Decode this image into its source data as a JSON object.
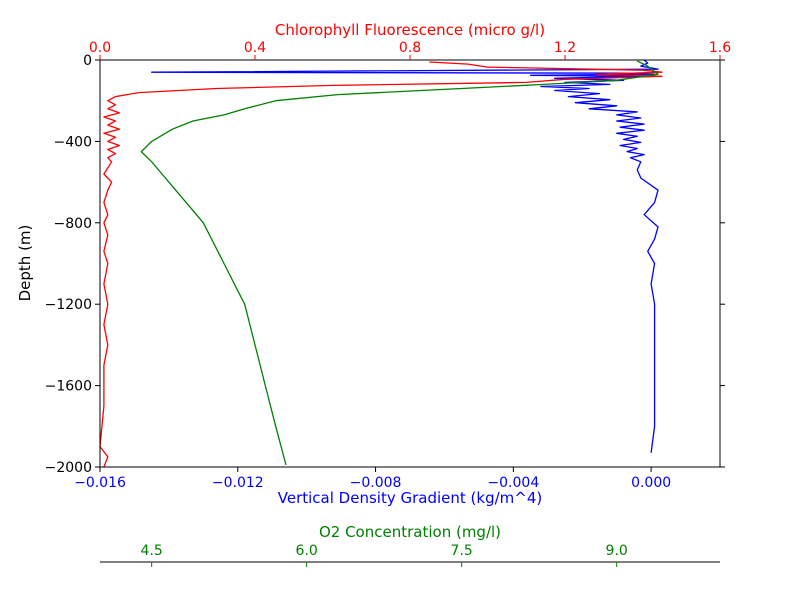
{
  "chart_data": {
    "type": "line",
    "y_axis": {
      "label": "Depth (m)",
      "range": [
        -2000,
        0
      ],
      "ticks": [
        0,
        -400,
        -800,
        -1200,
        -1600,
        -2000
      ],
      "tick_labels": [
        "0",
        "−400",
        "−800",
        "−1200",
        "−1600",
        "−2000"
      ],
      "color": "#000000"
    },
    "x_axes": [
      {
        "id": "density",
        "position": "bottom",
        "label": "Vertical Density Gradient (kg/m^4)",
        "range": [
          -0.016,
          0.002
        ],
        "ticks": [
          -0.016,
          -0.012,
          -0.008,
          -0.004,
          0.0
        ],
        "tick_labels": [
          "−0.016",
          "−0.012",
          "−0.008",
          "−0.004",
          "0.000"
        ],
        "color": "#0000ff"
      },
      {
        "id": "chlorophyll",
        "position": "top",
        "label": "Chlorophyll Fluorescence (micro g/l)",
        "range": [
          0,
          1.6
        ],
        "ticks": [
          0,
          0.4,
          0.8,
          1.2,
          1.6
        ],
        "tick_labels": [
          "0.0",
          "0.4",
          "0.8",
          "1.2",
          "1.6"
        ],
        "color": "#ff0000"
      },
      {
        "id": "oxygen",
        "position": "detached-bottom",
        "label": "O2 Concentration (mg/l)",
        "range": [
          4.0,
          10.0
        ],
        "ticks": [
          4.5,
          6.0,
          7.5,
          9.0
        ],
        "tick_labels": [
          "4.5",
          "6.0",
          "7.5",
          "9.0"
        ],
        "color": "#008000"
      }
    ],
    "series": [
      {
        "axis": "density",
        "color": "#0000ff",
        "points": [
          [
            -0.0002,
            0
          ],
          [
            -0.0001,
            -15
          ],
          [
            -0.0003,
            -30
          ],
          [
            0.0002,
            -45
          ],
          [
            -0.0145,
            -60
          ],
          [
            -0.0006,
            -65
          ],
          [
            0.0001,
            -70
          ],
          [
            -0.0035,
            -75
          ],
          [
            -0.0003,
            -80
          ],
          [
            -0.0028,
            -90
          ],
          [
            -0.0008,
            -100
          ],
          [
            -0.0025,
            -110
          ],
          [
            -0.0012,
            -120
          ],
          [
            -0.0032,
            -130
          ],
          [
            -0.0018,
            -140
          ],
          [
            -0.0028,
            -150
          ],
          [
            -0.0015,
            -165
          ],
          [
            -0.0024,
            -180
          ],
          [
            -0.0012,
            -195
          ],
          [
            -0.0022,
            -210
          ],
          [
            -0.001,
            -225
          ],
          [
            -0.0018,
            -240
          ],
          [
            -0.0004,
            -255
          ],
          [
            -0.001,
            -270
          ],
          [
            -0.0003,
            -285
          ],
          [
            -0.001,
            -300
          ],
          [
            -0.0002,
            -315
          ],
          [
            -0.0009,
            -330
          ],
          [
            -0.0002,
            -345
          ],
          [
            -0.001,
            -360
          ],
          [
            -0.0004,
            -375
          ],
          [
            -0.0008,
            -390
          ],
          [
            -0.0003,
            -405
          ],
          [
            -0.0009,
            -420
          ],
          [
            -0.0004,
            -435
          ],
          [
            -0.0007,
            -450
          ],
          [
            -0.0002,
            -465
          ],
          [
            -0.0006,
            -480
          ],
          [
            -0.0003,
            -500
          ],
          [
            -0.0004,
            -540
          ],
          [
            -0.0003,
            -580
          ],
          [
            0.0002,
            -640
          ],
          [
            0.0001,
            -700
          ],
          [
            -0.0002,
            -760
          ],
          [
            0.0002,
            -820
          ],
          [
            0.0001,
            -880
          ],
          [
            -0.0001,
            -940
          ],
          [
            0.0001,
            -1000
          ],
          [
            0.0,
            -1100
          ],
          [
            0.0001,
            -1200
          ],
          [
            0.0001,
            -1400
          ],
          [
            0.0001,
            -1600
          ],
          [
            0.0001,
            -1800
          ],
          [
            0.0,
            -1930
          ]
        ]
      },
      {
        "axis": "chlorophyll",
        "color": "#ff0000",
        "points": [
          [
            0.85,
            -10
          ],
          [
            0.95,
            -20
          ],
          [
            1.0,
            -35
          ],
          [
            1.4,
            -50
          ],
          [
            1.45,
            -60
          ],
          [
            1.28,
            -70
          ],
          [
            1.45,
            -80
          ],
          [
            1.2,
            -95
          ],
          [
            1.1,
            -110
          ],
          [
            0.6,
            -125
          ],
          [
            0.3,
            -140
          ],
          [
            0.1,
            -160
          ],
          [
            0.04,
            -180
          ],
          [
            0.02,
            -200
          ],
          [
            0.04,
            -220
          ],
          [
            0.02,
            -240
          ],
          [
            0.05,
            -260
          ],
          [
            0.01,
            -280
          ],
          [
            0.04,
            -300
          ],
          [
            0.02,
            -320
          ],
          [
            0.05,
            -340
          ],
          [
            0.01,
            -360
          ],
          [
            0.04,
            -380
          ],
          [
            0.02,
            -400
          ],
          [
            0.05,
            -420
          ],
          [
            0.02,
            -440
          ],
          [
            0.04,
            -460
          ],
          [
            0.02,
            -480
          ],
          [
            0.03,
            -500
          ],
          [
            0.01,
            -560
          ],
          [
            0.03,
            -600
          ],
          [
            0.02,
            -640
          ],
          [
            0.01,
            -700
          ],
          [
            0.02,
            -760
          ],
          [
            0.01,
            -800
          ],
          [
            0.02,
            -860
          ],
          [
            0.01,
            -940
          ],
          [
            0.02,
            -1000
          ],
          [
            0.01,
            -1100
          ],
          [
            0.02,
            -1200
          ],
          [
            0.01,
            -1300
          ],
          [
            0.02,
            -1400
          ],
          [
            0.01,
            -1500
          ],
          [
            0.01,
            -1700
          ],
          [
            0.0,
            -1900
          ],
          [
            0.02,
            -1950
          ],
          [
            0.01,
            -2000
          ]
        ]
      },
      {
        "axis": "oxygen",
        "color": "#008000",
        "points": [
          [
            9.2,
            -5
          ],
          [
            9.3,
            -30
          ],
          [
            9.4,
            -70
          ],
          [
            9.0,
            -100
          ],
          [
            8.3,
            -120
          ],
          [
            7.5,
            -140
          ],
          [
            6.3,
            -170
          ],
          [
            5.7,
            -200
          ],
          [
            5.4,
            -240
          ],
          [
            5.2,
            -270
          ],
          [
            4.9,
            -300
          ],
          [
            4.7,
            -340
          ],
          [
            4.5,
            -400
          ],
          [
            4.4,
            -450
          ],
          [
            4.5,
            -500
          ],
          [
            4.6,
            -560
          ],
          [
            4.7,
            -620
          ],
          [
            4.8,
            -680
          ],
          [
            4.9,
            -740
          ],
          [
            5.0,
            -800
          ],
          [
            5.1,
            -900
          ],
          [
            5.2,
            -1000
          ],
          [
            5.3,
            -1100
          ],
          [
            5.4,
            -1200
          ],
          [
            5.5,
            -1400
          ],
          [
            5.6,
            -1600
          ],
          [
            5.7,
            -1800
          ],
          [
            5.8,
            -1990
          ]
        ]
      }
    ]
  }
}
